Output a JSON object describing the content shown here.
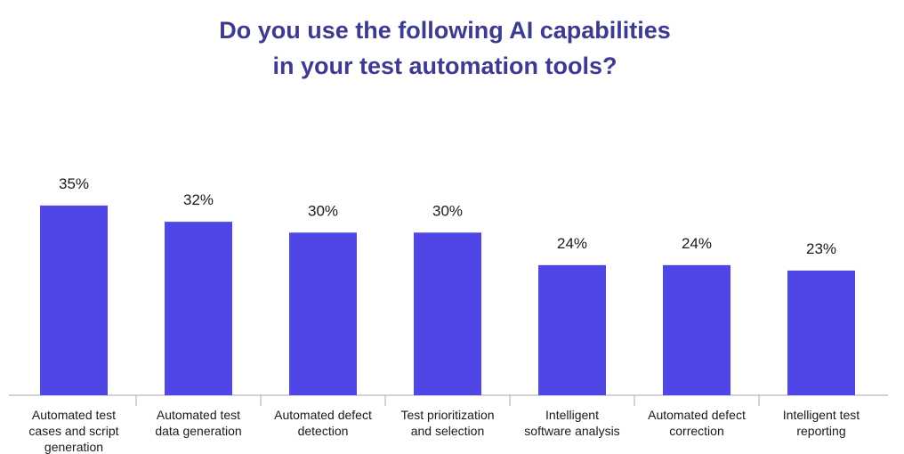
{
  "chart_data": {
    "type": "bar",
    "title_lines": [
      "Do you use the following AI capabilities",
      "in your test automation tools?"
    ],
    "categories": [
      [
        "Automated test",
        "cases and script",
        "generation"
      ],
      [
        "Automated test",
        "data generation"
      ],
      [
        "Automated defect",
        "detection"
      ],
      [
        "Test prioritization",
        "and selection"
      ],
      [
        "Intelligent",
        "software analysis"
      ],
      [
        "Automated defect",
        "correction"
      ],
      [
        "Intelligent test",
        "reporting"
      ]
    ],
    "values": [
      35,
      32,
      30,
      30,
      24,
      24,
      23
    ],
    "value_labels": [
      "35%",
      "32%",
      "30%",
      "30%",
      "24%",
      "24%",
      "23%"
    ],
    "ylim": [
      0,
      40
    ],
    "bar_color": "#5046e5",
    "title_color": "#3c3b8f",
    "grid": false,
    "legend": "none"
  }
}
